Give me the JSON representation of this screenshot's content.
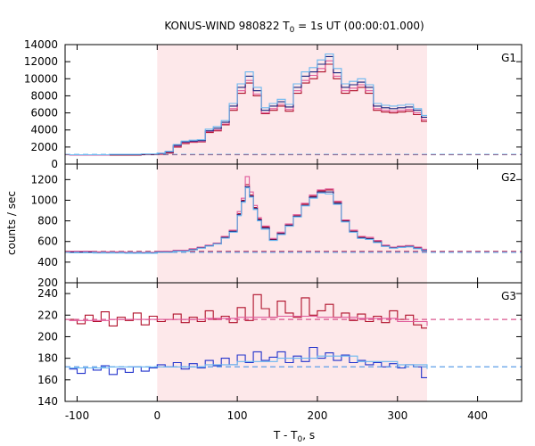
{
  "chart_data": {
    "type": "line",
    "title_main": "KONUS-WIND 980822 T",
    "title_sub": "0",
    "title_rest": " = 1s UT (00:00:01.000)",
    "xlabel_main": "T - T",
    "xlabel_sub": "0",
    "xlabel_rest": ", s",
    "ylabel": "counts / sec",
    "xlim": [
      -115,
      455
    ],
    "xticks": [
      -100,
      0,
      100,
      200,
      300,
      400
    ],
    "shaded_interval": [
      0,
      337
    ],
    "shade_color": "#fde8ea",
    "colors": {
      "red": "#b0102a",
      "pink": "#e05a9a",
      "navy": "#1a237e",
      "lightblue": "#6ab7f0",
      "blue": "#2233cc"
    },
    "panels": [
      {
        "label": "G1",
        "ylim": [
          0,
          14000
        ],
        "yticks": [
          0,
          2000,
          4000,
          6000,
          8000,
          10000,
          12000,
          14000
        ],
        "background": 1100,
        "series": [
          {
            "color": "red",
            "bg": 1100,
            "x": [
              -110,
              -60,
              -20,
              0,
              10,
              20,
              30,
              40,
              50,
              60,
              70,
              80,
              90,
              100,
              110,
              120,
              130,
              140,
              150,
              160,
              170,
              180,
              190,
              200,
              210,
              220,
              230,
              240,
              250,
              260,
              270,
              280,
              290,
              300,
              310,
              320,
              330,
              337
            ],
            "y": [
              1050,
              1050,
              1100,
              1150,
              1300,
              2000,
              2400,
              2550,
              2600,
              3700,
              3900,
              4600,
              6300,
              8300,
              9500,
              8000,
              5900,
              6300,
              6800,
              6200,
              8300,
              9500,
              10000,
              10800,
              11700,
              10000,
              8300,
              8600,
              9000,
              8300,
              6300,
              6100,
              6000,
              6100,
              6200,
              5800,
              5000,
              5000
            ]
          },
          {
            "color": "pink",
            "bg": 1150,
            "x": [
              -110,
              -60,
              -20,
              0,
              10,
              20,
              30,
              40,
              50,
              60,
              70,
              80,
              90,
              100,
              110,
              120,
              130,
              140,
              150,
              160,
              170,
              180,
              190,
              200,
              210,
              220,
              230,
              240,
              250,
              260,
              270,
              280,
              290,
              300,
              310,
              320,
              330,
              337
            ],
            "y": [
              1050,
              1100,
              1150,
              1200,
              1400,
              2100,
              2500,
              2600,
              2650,
              3800,
              4000,
              4700,
              6500,
              8600,
              9800,
              8200,
              6000,
              6500,
              7000,
              6400,
              8600,
              9800,
              10400,
              11200,
              12100,
              10300,
              8600,
              8900,
              9300,
              8600,
              6500,
              6300,
              6200,
              6300,
              6400,
              6000,
              5200,
              5200
            ]
          },
          {
            "color": "navy",
            "bg": 1150,
            "x": [
              -110,
              -60,
              -20,
              0,
              10,
              20,
              30,
              40,
              50,
              60,
              70,
              80,
              90,
              100,
              110,
              120,
              130,
              140,
              150,
              160,
              170,
              180,
              190,
              200,
              210,
              220,
              230,
              240,
              250,
              260,
              270,
              280,
              290,
              300,
              310,
              320,
              330,
              337
            ],
            "y": [
              1100,
              1100,
              1150,
              1250,
              1450,
              2200,
              2600,
              2700,
              2750,
              3900,
              4200,
              4900,
              6800,
              9000,
              10300,
              8600,
              6300,
              6800,
              7300,
              6700,
              9000,
              10300,
              10800,
              11700,
              12600,
              10700,
              9000,
              9300,
              9600,
              9000,
              6800,
              6600,
              6500,
              6600,
              6700,
              6300,
              5500,
              5500
            ]
          },
          {
            "color": "lightblue",
            "bg": 1150,
            "x": [
              -110,
              -60,
              -20,
              0,
              10,
              20,
              30,
              40,
              50,
              60,
              70,
              80,
              90,
              100,
              110,
              120,
              130,
              140,
              150,
              160,
              170,
              180,
              190,
              200,
              210,
              220,
              230,
              240,
              250,
              260,
              270,
              280,
              290,
              300,
              310,
              320,
              330,
              337
            ],
            "y": [
              1100,
              1150,
              1200,
              1300,
              1500,
              2300,
              2700,
              2800,
              2850,
              4100,
              4400,
              5100,
              7100,
              9400,
              10800,
              9000,
              6600,
              7100,
              7600,
              7000,
              9400,
              10800,
              11300,
              12200,
              12900,
              11200,
              9400,
              9700,
              10000,
              9300,
              7100,
              6900,
              6800,
              6900,
              7000,
              6500,
              5700,
              5700
            ]
          }
        ]
      },
      {
        "label": "G2",
        "ylim": [
          200,
          1350
        ],
        "yticks": [
          200,
          400,
          600,
          800,
          1000,
          1200
        ],
        "background": 500,
        "series": [
          {
            "color": "red",
            "bg": 505,
            "x": [
              -110,
              -80,
              -40,
              0,
              20,
              40,
              50,
              60,
              70,
              80,
              90,
              100,
              105,
              110,
              115,
              120,
              125,
              130,
              140,
              150,
              160,
              170,
              180,
              190,
              200,
              210,
              220,
              230,
              240,
              250,
              260,
              270,
              280,
              290,
              300,
              310,
              320,
              330,
              337
            ],
            "y": [
              500,
              495,
              490,
              500,
              510,
              525,
              540,
              560,
              580,
              640,
              700,
              870,
              1000,
              1150,
              1050,
              930,
              820,
              740,
              620,
              680,
              760,
              850,
              960,
              1040,
              1090,
              1100,
              980,
              800,
              700,
              640,
              630,
              600,
              560,
              540,
              550,
              560,
              540,
              520,
              520
            ]
          },
          {
            "color": "pink",
            "bg": 500,
            "x": [
              -110,
              -80,
              -40,
              0,
              20,
              40,
              50,
              60,
              70,
              80,
              90,
              100,
              105,
              110,
              115,
              120,
              125,
              130,
              140,
              150,
              160,
              170,
              180,
              190,
              200,
              210,
              220,
              230,
              240,
              250,
              260,
              270,
              280,
              290,
              300,
              310,
              320,
              330,
              337
            ],
            "y": [
              505,
              500,
              495,
              505,
              515,
              530,
              545,
              565,
              585,
              650,
              710,
              890,
              1020,
              1230,
              1080,
              950,
              830,
              750,
              630,
              690,
              770,
              860,
              970,
              1050,
              1100,
              1110,
              990,
              810,
              710,
              650,
              640,
              610,
              565,
              545,
              555,
              560,
              545,
              525,
              525
            ]
          },
          {
            "color": "navy",
            "bg": 495,
            "x": [
              -110,
              -80,
              -40,
              0,
              20,
              40,
              50,
              60,
              70,
              80,
              90,
              100,
              105,
              110,
              115,
              120,
              125,
              130,
              140,
              150,
              160,
              170,
              180,
              190,
              200,
              210,
              220,
              230,
              240,
              250,
              260,
              270,
              280,
              290,
              300,
              310,
              320,
              330,
              337
            ],
            "y": [
              495,
              490,
              488,
              498,
              508,
              522,
              538,
              558,
              578,
              638,
              698,
              860,
              990,
              1130,
              1040,
              920,
              810,
              730,
              615,
              675,
              755,
              845,
              950,
              1030,
              1080,
              1080,
              970,
              795,
              695,
              635,
              625,
              595,
              555,
              538,
              545,
              552,
              535,
              515,
              515
            ]
          },
          {
            "color": "lightblue",
            "bg": 495,
            "x": [
              -110,
              -80,
              -40,
              0,
              20,
              40,
              50,
              60,
              70,
              80,
              90,
              100,
              105,
              110,
              115,
              120,
              125,
              130,
              140,
              150,
              160,
              170,
              180,
              190,
              200,
              210,
              220,
              230,
              240,
              250,
              260,
              270,
              280,
              290,
              300,
              310,
              320,
              330,
              337
            ],
            "y": [
              490,
              488,
              486,
              495,
              505,
              518,
              535,
              555,
              575,
              632,
              690,
              850,
              980,
              1120,
              1030,
              910,
              800,
              720,
              610,
              668,
              748,
              838,
              945,
              1020,
              1070,
              1060,
              960,
              790,
              690,
              630,
              620,
              590,
              552,
              535,
              542,
              548,
              530,
              512,
              512
            ]
          }
        ]
      },
      {
        "label": "G3",
        "ylim": [
          140,
          250
        ],
        "yticks": [
          140,
          160,
          180,
          200,
          220,
          240
        ],
        "series": [
          {
            "color": "red",
            "bg": 216,
            "x": [
              -110,
              -100,
              -90,
              -80,
              -70,
              -60,
              -50,
              -40,
              -30,
              -20,
              -10,
              0,
              10,
              20,
              30,
              40,
              50,
              60,
              70,
              80,
              90,
              100,
              110,
              120,
              130,
              140,
              150,
              160,
              170,
              180,
              190,
              200,
              210,
              220,
              230,
              240,
              250,
              260,
              270,
              280,
              290,
              300,
              310,
              320,
              330,
              337
            ],
            "y": [
              216,
              212,
              220,
              214,
              223,
              210,
              218,
              215,
              222,
              211,
              219,
              214,
              216,
              221,
              213,
              218,
              214,
              224,
              216,
              219,
              213,
              227,
              215,
              239,
              226,
              218,
              233,
              222,
              218,
              236,
              220,
              224,
              230,
              218,
              222,
              215,
              221,
              214,
              219,
              213,
              224,
              216,
              220,
              211,
              208,
              208
            ]
          },
          {
            "color": "pink",
            "bg": 216,
            "x": [
              -110,
              -60,
              0,
              60,
              100,
              150,
              200,
              250,
              300,
              337
            ],
            "y": [
              215,
              216,
              216,
              217,
              218,
              219,
              218,
              217,
              214,
              210
            ]
          },
          {
            "color": "blue",
            "bg": 172,
            "x": [
              -110,
              -100,
              -90,
              -80,
              -70,
              -60,
              -50,
              -40,
              -30,
              -20,
              -10,
              0,
              10,
              20,
              30,
              40,
              50,
              60,
              70,
              80,
              90,
              100,
              110,
              120,
              130,
              140,
              150,
              160,
              170,
              180,
              190,
              200,
              210,
              220,
              230,
              240,
              250,
              260,
              270,
              280,
              290,
              300,
              310,
              320,
              330,
              337
            ],
            "y": [
              170,
              166,
              171,
              169,
              173,
              165,
              170,
              167,
              172,
              168,
              171,
              174,
              172,
              176,
              170,
              175,
              171,
              178,
              173,
              180,
              174,
              183,
              176,
              186,
              178,
              181,
              186,
              176,
              182,
              177,
              190,
              180,
              185,
              178,
              183,
              176,
              178,
              174,
              176,
              172,
              175,
              171,
              174,
              172,
              162,
              162
            ]
          },
          {
            "color": "lightblue",
            "bg": 172,
            "x": [
              -110,
              -60,
              0,
              60,
              100,
              150,
              200,
              250,
              300,
              337
            ],
            "y": [
              171,
              172,
              172,
              174,
              177,
              180,
              182,
              177,
              174,
              170
            ]
          }
        ]
      }
    ]
  }
}
